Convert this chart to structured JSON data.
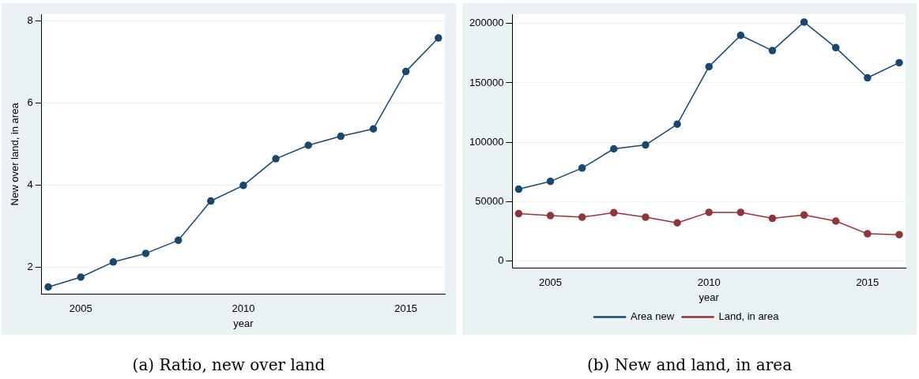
{
  "chart_data": [
    {
      "type": "line",
      "title": "(a) Ratio, new over land",
      "xlabel": "year",
      "ylabel": "New over land, in area",
      "x": [
        2004,
        2005,
        2006,
        2007,
        2008,
        2009,
        2010,
        2011,
        2012,
        2013,
        2014,
        2015,
        2016
      ],
      "series": [
        {
          "color": "#1a476f",
          "values": [
            1.51,
            1.75,
            2.12,
            2.33,
            2.65,
            3.61,
            3.99,
            4.64,
            4.97,
            5.19,
            5.37,
            6.77,
            7.59
          ]
        }
      ],
      "xlim": [
        2003.8,
        2016.2
      ],
      "xticks": [
        2005,
        2010,
        2015
      ],
      "ylim": [
        1.33,
        8.17
      ],
      "yticks": [
        2,
        4,
        6,
        8
      ],
      "grid": "y",
      "marker": "circle",
      "legend": false
    },
    {
      "type": "line",
      "title": "(b) New and land, in area",
      "xlabel": "year",
      "x": [
        2004,
        2005,
        2006,
        2007,
        2008,
        2009,
        2010,
        2011,
        2012,
        2013,
        2014,
        2015,
        2016
      ],
      "series": [
        {
          "name": "Area new",
          "color": "#1a476f",
          "values": [
            60400,
            67000,
            78200,
            94400,
            97700,
            115200,
            163700,
            190100,
            177200,
            201300,
            179700,
            154300,
            167000
          ]
        },
        {
          "name": "Land, in area",
          "color": "#90353b",
          "values": [
            39800,
            38100,
            36800,
            40600,
            36800,
            32000,
            40900,
            40900,
            35800,
            38600,
            33500,
            22800,
            22100
          ]
        }
      ],
      "xlim": [
        2003.8,
        2016.2
      ],
      "xticks": [
        2005,
        2010,
        2015
      ],
      "ylim": [
        -6300,
        207900
      ],
      "yticks": [
        0,
        50000,
        100000,
        150000,
        200000
      ],
      "grid": "y",
      "marker": "circle",
      "legend": "bottom"
    }
  ]
}
